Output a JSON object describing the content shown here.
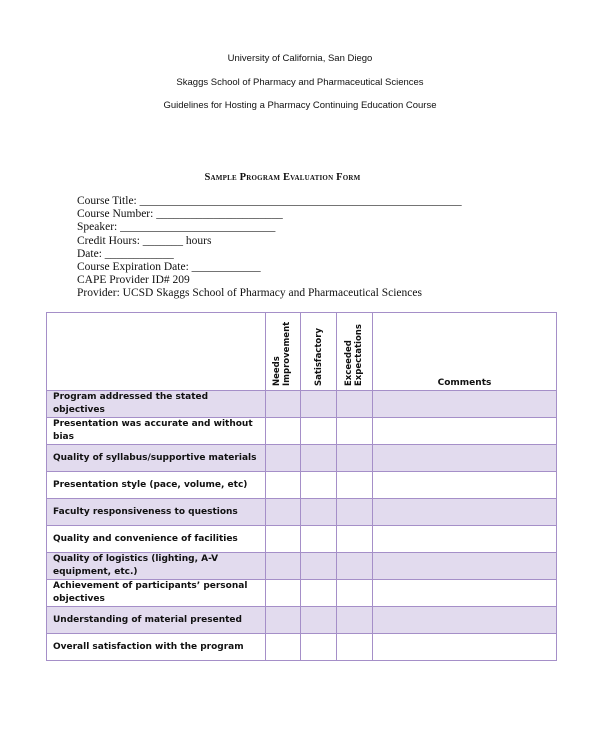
{
  "header": {
    "university": "University of California, San Diego",
    "school": "Skaggs School of Pharmacy and Pharmaceutical Sciences",
    "guidelines": "Guidelines for Hosting a Pharmacy Continuing Education Course"
  },
  "form": {
    "title": "Sample Program Evaluation Form",
    "fields": [
      "Course Title: ________________________________________________________",
      "Course Number: ______________________",
      "Speaker: ___________________________",
      "Credit Hours: _______ hours",
      "Date: ____________",
      "Course Expiration Date: ____________",
      "CAPE Provider ID# 209",
      "Provider: UCSD Skaggs School of Pharmacy and Pharmaceutical Sciences"
    ]
  },
  "table": {
    "columns": [
      "Needs Improvement",
      "Satisfactory",
      "Exceeded Expectations",
      "Comments"
    ],
    "rows": [
      "Program addressed the stated objectives",
      "Presentation was accurate and without bias",
      "Quality of syllabus/supportive materials",
      "Presentation style (pace, volume, etc)",
      "Faculty responsiveness to questions",
      "Quality and convenience of facilities",
      "Quality of logistics (lighting, A-V equipment, etc.)",
      "Achievement of participants’ personal objectives",
      "Understanding of material presented",
      "Overall satisfaction with the program"
    ]
  },
  "colors": {
    "border": "#a58fc8",
    "shade": "#e2dbee"
  }
}
